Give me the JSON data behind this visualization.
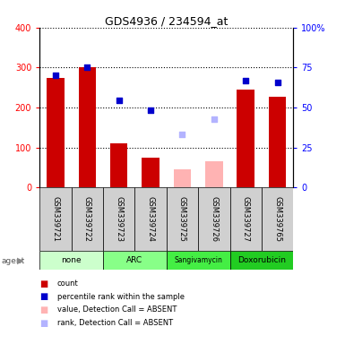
{
  "title": "GDS4936 / 234594_at",
  "samples": [
    "GSM339721",
    "GSM339722",
    "GSM339723",
    "GSM339724",
    "GSM339725",
    "GSM339726",
    "GSM339727",
    "GSM339765"
  ],
  "agents": [
    {
      "label": "none",
      "samples": [
        0,
        1
      ],
      "color": "#ccffcc"
    },
    {
      "label": "ARC",
      "samples": [
        2,
        3
      ],
      "color": "#88ff88"
    },
    {
      "label": "Sangivamycin",
      "samples": [
        4,
        5
      ],
      "color": "#44ee44"
    },
    {
      "label": "Doxorubicin",
      "samples": [
        6,
        7
      ],
      "color": "#22cc22"
    }
  ],
  "bar_values": [
    275,
    300,
    110,
    75,
    null,
    null,
    245,
    228
  ],
  "bar_values_absent": [
    null,
    null,
    null,
    null,
    45,
    65,
    null,
    null
  ],
  "bar_color_present": "#cc0000",
  "bar_color_absent": "#ffb3b3",
  "dot_values": [
    280,
    300,
    218,
    193,
    null,
    null,
    268,
    262
  ],
  "dot_values_absent": [
    null,
    null,
    null,
    null,
    133,
    170,
    null,
    null
  ],
  "dot_color_present": "#0000cc",
  "dot_color_absent": "#b3b3ff",
  "ylim": [
    0,
    400
  ],
  "y2lim": [
    0,
    100
  ],
  "yticks": [
    0,
    100,
    200,
    300,
    400
  ],
  "ytick_labels": [
    "0",
    "100",
    "200",
    "300",
    "400"
  ],
  "y2ticks": [
    0,
    25,
    50,
    75,
    100
  ],
  "y2tick_labels": [
    "0",
    "25",
    "50",
    "75",
    "100%"
  ],
  "bar_width": 0.55,
  "dot_size": 25,
  "sample_bg": "#d0d0d0",
  "grid_color": "#000000",
  "legend_items": [
    {
      "color": "#cc0000",
      "label": "count"
    },
    {
      "color": "#0000cc",
      "label": "percentile rank within the sample"
    },
    {
      "color": "#ffb3b3",
      "label": "value, Detection Call = ABSENT"
    },
    {
      "color": "#b3b3ff",
      "label": "rank, Detection Call = ABSENT"
    }
  ]
}
